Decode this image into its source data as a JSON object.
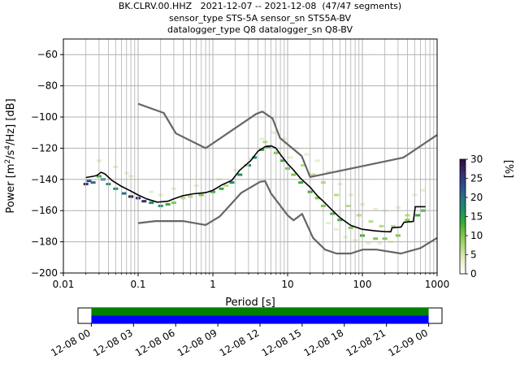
{
  "title_lines": [
    "BK.CLRV.00.HHZ   2021-12-07 -- 2021-12-08  (47/47 segments)",
    "sensor_type STS-5A sensor_sn STS5A-BV",
    "datalogger_type Q8 datalogger_sn Q8-BV"
  ],
  "chart_data": [
    {
      "type": "heatmap",
      "title": "BK.CLRV.00.HHZ   2021-12-07 -- 2021-12-08  (47/47 segments)",
      "xlabel": "Period [s]",
      "ylabel": "Power [m²/s⁴/Hz] [dB]",
      "ylabel_parts": {
        "pre": "Power [m",
        "sup1": "2",
        "mid": "/s",
        "sup2": "4",
        "post": "/Hz] [dB]"
      },
      "xscale": "log",
      "xlim": [
        0.01,
        1000
      ],
      "ylim": [
        -200,
        -50
      ],
      "xticks": [
        0.01,
        0.1,
        1,
        10,
        100,
        1000
      ],
      "xtick_labels": [
        "0.01",
        "0.1",
        "1",
        "10",
        "100",
        "1000"
      ],
      "yticks": [
        -200,
        -180,
        -160,
        -140,
        -120,
        -100,
        -80,
        -60
      ],
      "ytick_labels": [
        "−200",
        "−180",
        "−160",
        "−140",
        "−120",
        "−100",
        "−80",
        "−60"
      ],
      "grid": true,
      "colorbar": {
        "label": "[%]",
        "min": 0,
        "max": 30,
        "ticks": [
          0,
          5,
          10,
          15,
          20,
          25,
          30
        ],
        "tick_labels": [
          "0",
          "5",
          "10",
          "15",
          "20",
          "25",
          "30"
        ],
        "colormap": [
          "#ffffff",
          "#e6f0cc",
          "#b9dc8a",
          "#7fc84a",
          "#3aaa35",
          "#1f8f68",
          "#2a6f83",
          "#2d4a8a",
          "#3a2a6e",
          "#2c0d3f"
        ]
      },
      "series": [
        {
          "kind": "noise-model-high",
          "color": "#666666",
          "points": [
            [
              0.1,
              -91.5
            ],
            [
              0.22,
              -97.4
            ],
            [
              0.32,
              -110.5
            ],
            [
              0.8,
              -120
            ],
            [
              3.8,
              -98
            ],
            [
              4.6,
              -96.5
            ],
            [
              6.3,
              -101
            ],
            [
              7.9,
              -113.5
            ],
            [
              15.4,
              -125
            ],
            [
              20,
              -138.5
            ],
            [
              354,
              -126
            ],
            [
              1000,
              -111.5
            ]
          ]
        },
        {
          "kind": "noise-model-low",
          "color": "#666666",
          "points": [
            [
              0.1,
              -168
            ],
            [
              0.17,
              -166.7
            ],
            [
              0.4,
              -166.7
            ],
            [
              0.8,
              -169.2
            ],
            [
              1.24,
              -163.7
            ],
            [
              2.4,
              -148.6
            ],
            [
              4.3,
              -141.5
            ],
            [
              5.0,
              -141.1
            ],
            [
              6.0,
              -149
            ],
            [
              10,
              -163
            ],
            [
              12,
              -166.2
            ],
            [
              15.6,
              -162.1
            ],
            [
              21.9,
              -177.5
            ],
            [
              31.6,
              -185
            ],
            [
              45,
              -187.5
            ],
            [
              70,
              -187.5
            ],
            [
              101,
              -185
            ],
            [
              154,
              -185
            ],
            [
              328,
              -187.5
            ],
            [
              600,
              -184
            ],
            [
              1000,
              -177.5
            ]
          ]
        },
        {
          "kind": "mode",
          "color": "#000000",
          "points": [
            [
              0.02,
              -138.8
            ],
            [
              0.025,
              -138
            ],
            [
              0.028,
              -137.5
            ],
            [
              0.032,
              -135.4
            ],
            [
              0.036,
              -136.5
            ],
            [
              0.045,
              -140.8
            ],
            [
              0.06,
              -144.5
            ],
            [
              0.08,
              -147.5
            ],
            [
              0.1,
              -150
            ],
            [
              0.13,
              -152.5
            ],
            [
              0.18,
              -154.6
            ],
            [
              0.25,
              -154
            ],
            [
              0.3,
              -152.5
            ],
            [
              0.4,
              -150.4
            ],
            [
              0.55,
              -149.2
            ],
            [
              0.8,
              -148.5
            ],
            [
              1,
              -147
            ],
            [
              1.3,
              -143.7
            ],
            [
              1.8,
              -140.5
            ],
            [
              2.3,
              -134
            ],
            [
              3.2,
              -128
            ],
            [
              4,
              -122
            ],
            [
              5,
              -119
            ],
            [
              6,
              -118.5
            ],
            [
              7,
              -120
            ],
            [
              8,
              -124
            ],
            [
              10,
              -130
            ],
            [
              12,
              -134
            ],
            [
              15,
              -139.5
            ],
            [
              20,
              -145
            ],
            [
              25,
              -150.5
            ],
            [
              30,
              -154
            ],
            [
              40,
              -160
            ],
            [
              50,
              -164.5
            ],
            [
              70,
              -169.5
            ],
            [
              100,
              -172
            ],
            [
              150,
              -173
            ],
            [
              200,
              -173.5
            ],
            [
              240,
              -173.6
            ],
            [
              250,
              -171
            ],
            [
              330,
              -170.5
            ],
            [
              360,
              -167.5
            ],
            [
              480,
              -167
            ],
            [
              510,
              -157.5
            ],
            [
              700,
              -157.5
            ]
          ]
        }
      ],
      "density_cells": [
        [
          0.02,
          -143,
          25
        ],
        [
          0.022,
          -141,
          22
        ],
        [
          0.025,
          -142,
          20
        ],
        [
          0.03,
          -138,
          12
        ],
        [
          0.034,
          -140,
          20
        ],
        [
          0.04,
          -143,
          18
        ],
        [
          0.05,
          -146,
          15
        ],
        [
          0.065,
          -149,
          20
        ],
        [
          0.08,
          -151,
          30
        ],
        [
          0.1,
          -152,
          28
        ],
        [
          0.12,
          -154,
          25
        ],
        [
          0.15,
          -155,
          18
        ],
        [
          0.2,
          -157,
          18
        ],
        [
          0.25,
          -156,
          12
        ],
        [
          0.3,
          -155,
          10
        ],
        [
          0.4,
          -152,
          8
        ],
        [
          0.5,
          -151,
          8
        ],
        [
          0.7,
          -150,
          10
        ],
        [
          1.0,
          -148,
          12
        ],
        [
          1.3,
          -146,
          14
        ],
        [
          1.8,
          -142,
          15
        ],
        [
          2.3,
          -137,
          18
        ],
        [
          3.0,
          -131,
          20
        ],
        [
          3.6,
          -126,
          18
        ],
        [
          4.5,
          -121,
          12
        ],
        [
          5.5,
          -119,
          12
        ],
        [
          7.0,
          -123,
          10
        ],
        [
          8.5,
          -128,
          12
        ],
        [
          10,
          -133,
          10
        ],
        [
          12,
          -137,
          10
        ],
        [
          15,
          -142,
          14
        ],
        [
          20,
          -148,
          12
        ],
        [
          25,
          -152,
          10
        ],
        [
          30,
          -157,
          10
        ],
        [
          40,
          -162,
          12
        ],
        [
          50,
          -166,
          12
        ],
        [
          70,
          -171,
          10
        ],
        [
          100,
          -176,
          12
        ],
        [
          150,
          -178,
          10
        ],
        [
          200,
          -178,
          10
        ],
        [
          300,
          -176,
          10
        ],
        [
          400,
          -166,
          10
        ],
        [
          550,
          -163,
          14
        ],
        [
          650,
          -160,
          12
        ],
        [
          0.03,
          -128,
          2
        ],
        [
          0.05,
          -132,
          2
        ],
        [
          0.08,
          -138,
          2
        ],
        [
          0.15,
          -148,
          2
        ],
        [
          0.3,
          -146,
          2
        ],
        [
          0.6,
          -144,
          2
        ],
        [
          1.2,
          -140,
          3
        ],
        [
          2.0,
          -134,
          3
        ],
        [
          3.2,
          -127,
          3
        ],
        [
          4.5,
          -114,
          3
        ],
        [
          6.5,
          -110,
          2
        ],
        [
          9,
          -114,
          2
        ],
        [
          13,
          -120,
          3
        ],
        [
          18,
          -124,
          3
        ],
        [
          25,
          -128,
          3
        ],
        [
          35,
          -135,
          3
        ],
        [
          50,
          -143,
          3
        ],
        [
          70,
          -150,
          3
        ],
        [
          100,
          -156,
          3
        ],
        [
          150,
          -159,
          3
        ],
        [
          200,
          -160,
          3
        ],
        [
          300,
          -158,
          3
        ],
        [
          500,
          -150,
          3
        ],
        [
          650,
          -147,
          2
        ],
        [
          0.07,
          -136,
          4
        ],
        [
          0.2,
          -150,
          4
        ],
        [
          1.5,
          -144,
          5
        ],
        [
          2.8,
          -131,
          5
        ],
        [
          5,
          -116,
          5
        ],
        [
          8,
          -120,
          4
        ],
        [
          11,
          -126,
          4
        ],
        [
          16,
          -131,
          5
        ],
        [
          22,
          -137,
          5
        ],
        [
          30,
          -142,
          5
        ],
        [
          45,
          -150,
          5
        ],
        [
          65,
          -157,
          5
        ],
        [
          90,
          -163,
          6
        ],
        [
          130,
          -167,
          6
        ],
        [
          180,
          -170,
          6
        ],
        [
          260,
          -170,
          5
        ],
        [
          400,
          -163,
          5
        ],
        [
          60,
          -177,
          4
        ],
        [
          80,
          -179,
          4
        ],
        [
          120,
          -181,
          4
        ],
        [
          170,
          -181,
          4
        ],
        [
          240,
          -180,
          4
        ],
        [
          35,
          -168,
          4
        ],
        [
          45,
          -172,
          4
        ]
      ]
    },
    {
      "type": "timeline",
      "xlim": [
        "2021-12-07 23:59",
        "2021-12-09 01:20"
      ],
      "xtick_labels": [
        "12-08 00",
        "12-08 03",
        "12-08 06",
        "12-08 09",
        "12-08 12",
        "12-08 15",
        "12-08 18",
        "12-08 21",
        "12-09 00"
      ],
      "xtick_hours": [
        0,
        3,
        6,
        9,
        12,
        15,
        18,
        21,
        24
      ],
      "segments": [
        {
          "start_hour": 0.0,
          "end_hour": 24.0,
          "color": "#0000ff",
          "row": "bottom"
        },
        {
          "start_hour": 0.0,
          "end_hour": 24.0,
          "color": "#008000",
          "row": "top"
        }
      ]
    }
  ]
}
